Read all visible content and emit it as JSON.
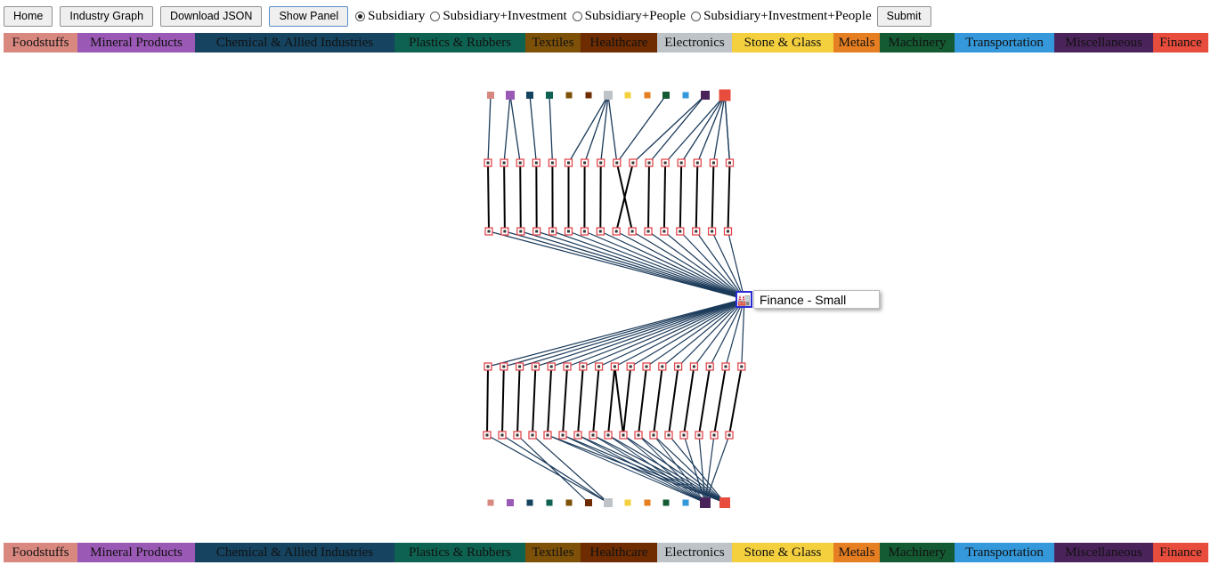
{
  "toolbar": {
    "home_label": "Home",
    "industry_graph_label": "Industry Graph",
    "download_json_label": "Download JSON",
    "show_panel_label": "Show Panel",
    "submit_label": "Submit",
    "radios": [
      {
        "label": "Subsidiary",
        "checked": true
      },
      {
        "label": "Subsidiary+Investment",
        "checked": false
      },
      {
        "label": "Subsidiary+People",
        "checked": false
      },
      {
        "label": "Subsidiary+Investment+People",
        "checked": false
      }
    ]
  },
  "legend": [
    {
      "label": "Foodstuffs",
      "color": "#d98880"
    },
    {
      "label": "Mineral Products",
      "color": "#9b59b6"
    },
    {
      "label": "Chemical & Allied Industries",
      "color": "#154360"
    },
    {
      "label": "Plastics & Rubbers",
      "color": "#0e6251"
    },
    {
      "label": "Textiles",
      "color": "#7e5109"
    },
    {
      "label": "Healthcare",
      "color": "#6e2c00"
    },
    {
      "label": "Electronics",
      "color": "#bdc3c7"
    },
    {
      "label": "Stone & Glass",
      "color": "#f4d03f"
    },
    {
      "label": "Metals",
      "color": "#e67e22"
    },
    {
      "label": "Machinery",
      "color": "#145a32"
    },
    {
      "label": "Transportation",
      "color": "#3498db"
    },
    {
      "label": "Miscellaneous",
      "color": "#4a235a"
    },
    {
      "label": "Finance",
      "color": "#e74c3c"
    }
  ],
  "tooltip": {
    "label": "Finance - Small"
  },
  "center_icon": "factory-icon"
}
